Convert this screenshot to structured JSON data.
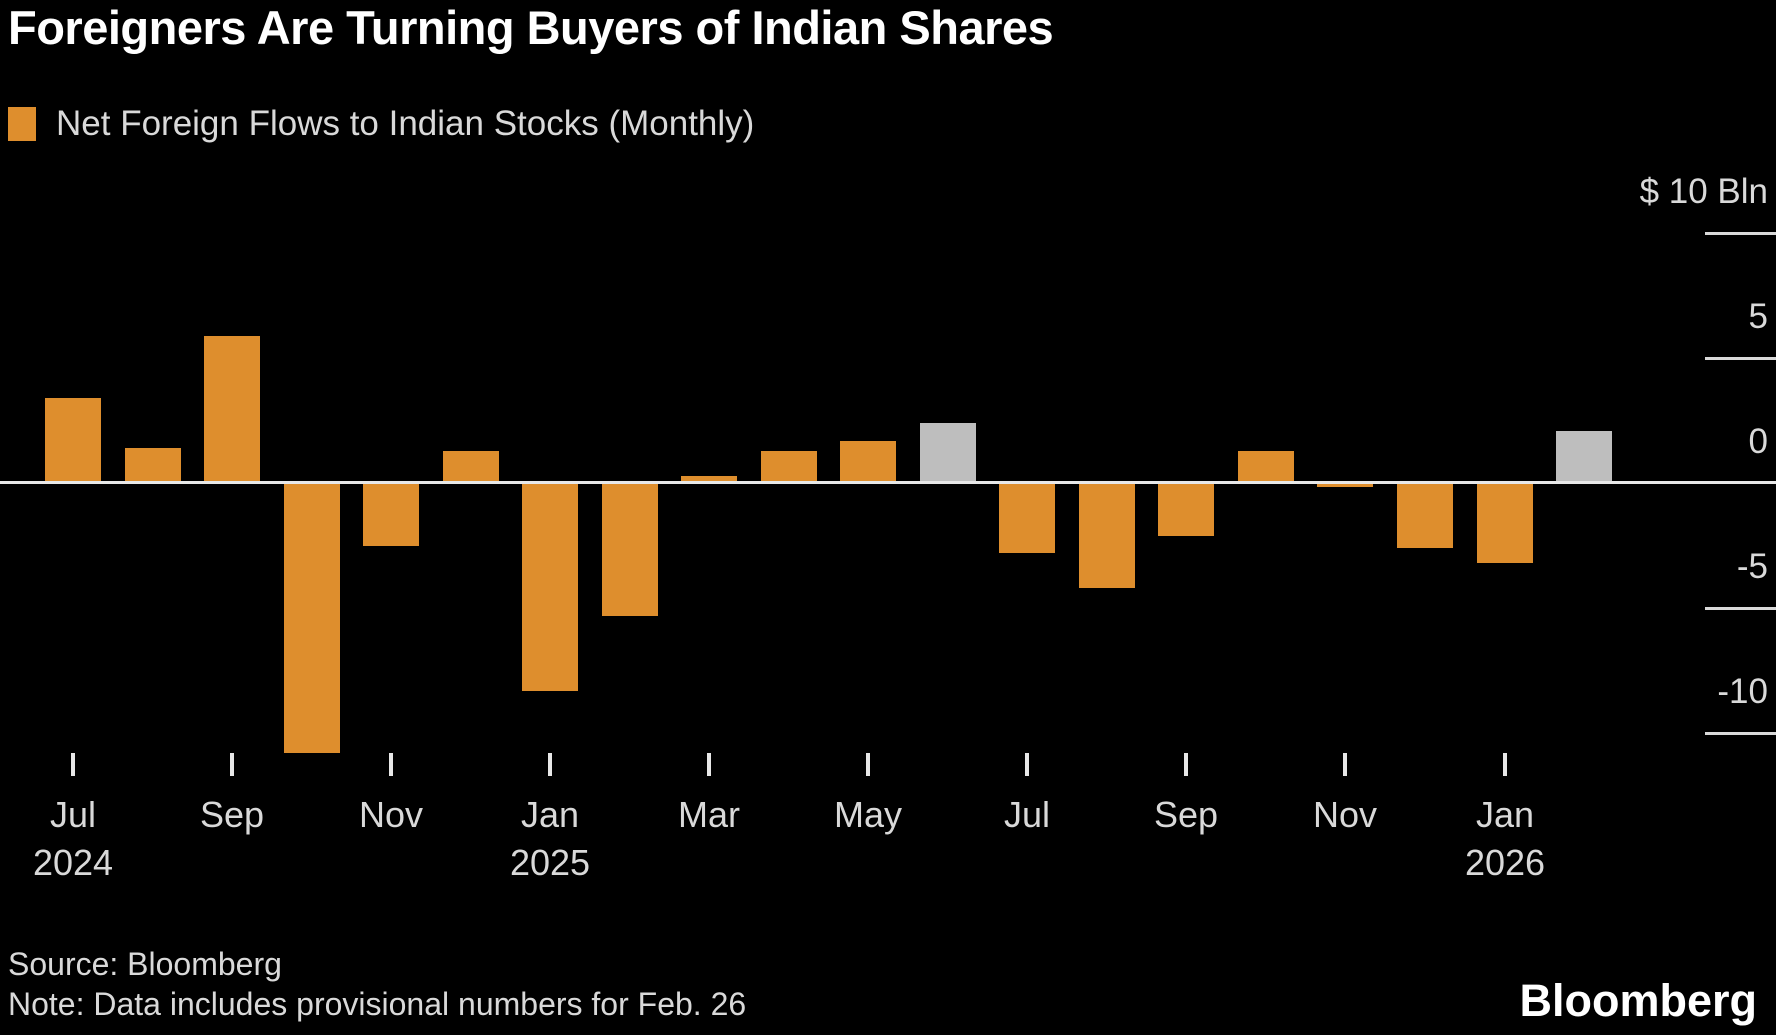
{
  "title": "Foreigners Are Turning Buyers of Indian Shares",
  "legend": {
    "label": "Net Foreign Flows to Indian Stocks (Monthly)",
    "swatch_color": "#DE8E2D"
  },
  "footer": {
    "source_line": "Source: Bloomberg",
    "note_line": "Note: Data includes provisional numbers for Feb. 26",
    "brand": "Bloomberg"
  },
  "colors": {
    "background": "#000000",
    "bar": "#DE8E2D",
    "bar_highlight": "#BEBEBE",
    "axis_line": "#E8E8E8",
    "tick_line": "#D9D9D9",
    "text": "#D9D9D9",
    "title_text": "#FFFFFF"
  },
  "y_axis": {
    "ticks": [
      {
        "value": 10,
        "label": "$ 10  Bln"
      },
      {
        "value": 5,
        "label": "5"
      },
      {
        "value": 0,
        "label": "0"
      },
      {
        "value": -5,
        "label": "-5"
      },
      {
        "value": -10,
        "label": "-10"
      }
    ]
  },
  "x_axis": {
    "tick_labels": [
      {
        "month_index": 0,
        "label": "Jul",
        "year": "2024"
      },
      {
        "month_index": 2,
        "label": "Sep",
        "year": ""
      },
      {
        "month_index": 4,
        "label": "Nov",
        "year": ""
      },
      {
        "month_index": 6,
        "label": "Jan",
        "year": "2025"
      },
      {
        "month_index": 8,
        "label": "Mar",
        "year": ""
      },
      {
        "month_index": 10,
        "label": "May",
        "year": ""
      },
      {
        "month_index": 12,
        "label": "Jul",
        "year": ""
      },
      {
        "month_index": 14,
        "label": "Sep",
        "year": ""
      },
      {
        "month_index": 16,
        "label": "Nov",
        "year": ""
      },
      {
        "month_index": 18,
        "label": "Jan",
        "year": "2026"
      }
    ]
  },
  "chart_data": {
    "type": "bar",
    "title": "Net Foreign Flows to Indian Stocks (Monthly)",
    "unit": "$ Bln",
    "ylim": [
      -12,
      10
    ],
    "y_ticks": [
      10,
      5,
      0,
      -5,
      -10
    ],
    "grid": "right-side tick dashes only",
    "legend_position": "top-left",
    "categories": [
      "Jul 2024",
      "Aug 2024",
      "Sep 2024",
      "Oct 2024",
      "Nov 2024",
      "Dec 2024",
      "Jan 2025",
      "Feb 2025",
      "Mar 2025",
      "Apr 2025",
      "May 2025",
      "Jun 2025",
      "Jul 2025",
      "Aug 2025",
      "Sep 2025",
      "Oct 2025",
      "Nov 2025",
      "Dec 2025",
      "Jan 2026",
      "Feb 2026"
    ],
    "values": [
      3.4,
      1.4,
      5.9,
      -10.8,
      -2.5,
      1.3,
      -8.3,
      -5.3,
      0.3,
      1.3,
      1.7,
      2.4,
      -2.8,
      -4.2,
      -2.1,
      1.3,
      -0.15,
      -2.6,
      -3.2,
      2.1
    ],
    "highlighted_categories": [
      "Jun 2025",
      "Feb 2026"
    ],
    "highlight_color_meaning": "gray bars (provisional / highlighted months)"
  }
}
